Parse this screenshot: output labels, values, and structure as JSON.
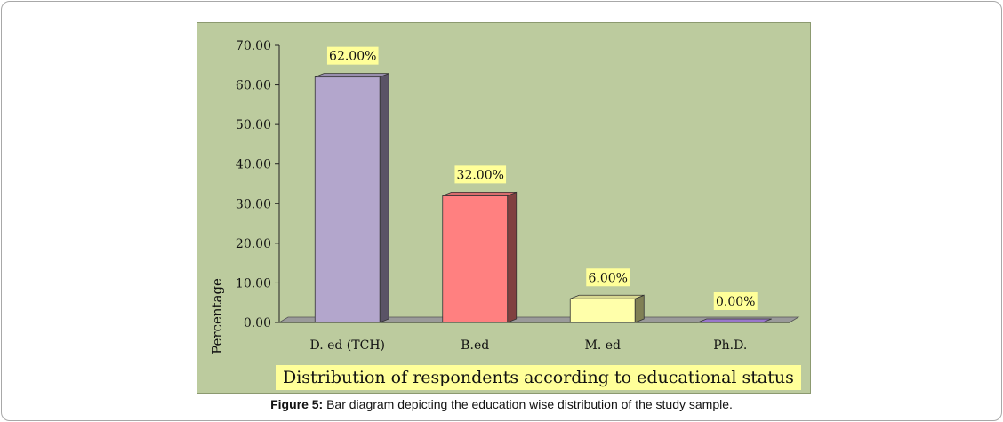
{
  "chart_data": {
    "type": "bar",
    "categories": [
      "D. ed (TCH)",
      "B.ed",
      "M. ed",
      "Ph.D."
    ],
    "values": [
      62.0,
      32.0,
      6.0,
      0.0
    ],
    "data_labels": [
      "62.00%",
      "32.00%",
      "6.00%",
      "0.00%"
    ],
    "bar_colors": [
      "#b3a6cc",
      "#ff8080",
      "#ffffaa",
      "#9977cc"
    ],
    "ylabel": "Percentage",
    "xlabel": "Distribution of respondents according to educational status",
    "ylim": [
      0,
      70
    ],
    "yticks": [
      "0.00",
      "10.00",
      "20.00",
      "30.00",
      "40.00",
      "50.00",
      "60.00",
      "70.00"
    ],
    "grid": false,
    "legend": false,
    "style": "3d-bar"
  },
  "caption": {
    "label": "Figure 5:",
    "text": " Bar diagram depicting the education wise distribution of the study sample."
  }
}
